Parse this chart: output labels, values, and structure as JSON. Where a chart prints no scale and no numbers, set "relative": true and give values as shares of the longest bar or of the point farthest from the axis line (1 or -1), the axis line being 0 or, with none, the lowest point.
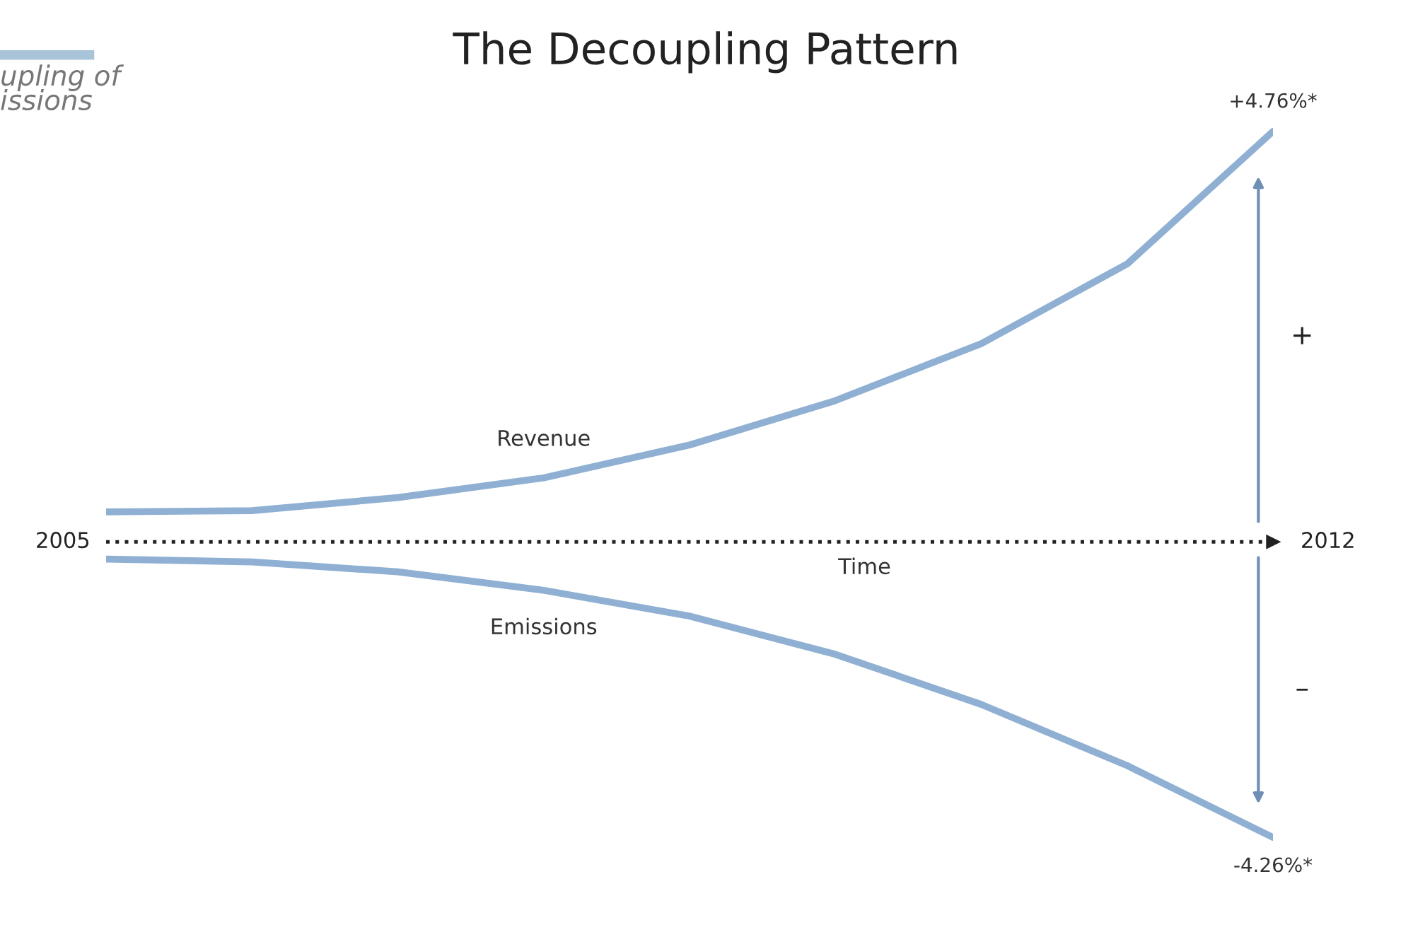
{
  "chart_data": {
    "type": "line",
    "title": "The Decoupling Pattern",
    "xlabel": "Time",
    "relative": true,
    "categories": [
      null,
      null,
      null,
      null,
      null,
      null,
      null,
      null,
      null
    ],
    "series": [
      {
        "name": "Revenue",
        "color": "#8fb0d3",
        "values": [
          0.073,
          0.076,
          0.108,
          0.156,
          0.236,
          0.344,
          0.483,
          0.677,
          1
        ]
      },
      {
        "name": "Emissions",
        "color": "#8fb0d3",
        "values": [
          -0.042,
          -0.049,
          -0.073,
          -0.118,
          -0.181,
          -0.274,
          -0.396,
          -0.545,
          -0.72
        ]
      }
    ],
    "annotations": [
      "+4.76%*",
      "-4.26%*",
      "+",
      "–",
      "2005",
      "2012",
      "upling of\nissions"
    ],
    "ref_lines": [
      {
        "axis": "y",
        "value": 0,
        "color": "#222222",
        "line_style": "dotted"
      }
    ],
    "grid": false,
    "legend": false,
    "marker": "none",
    "line_style": "solid"
  }
}
